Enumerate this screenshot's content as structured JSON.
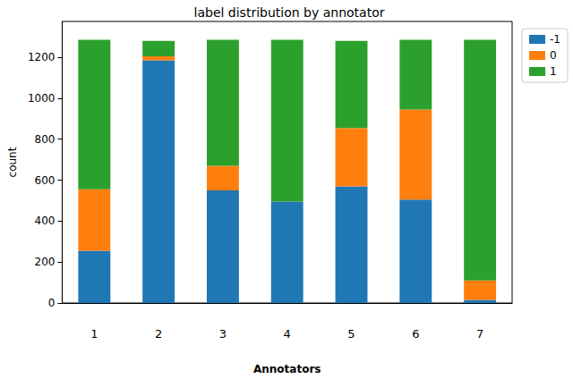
{
  "chart_data": {
    "type": "bar",
    "title": "label distribution by annotator",
    "x_label": "Annotators",
    "y_label": "count",
    "categories": [
      "1",
      "2",
      "3",
      "4",
      "5",
      "6",
      "7"
    ],
    "series": [
      {
        "name": "-1",
        "color": "#1f77b4",
        "values": [
          255,
          1185,
          550,
          495,
          570,
          505,
          15
        ]
      },
      {
        "name": "0",
        "color": "#ff7f0e",
        "values": [
          300,
          20,
          120,
          0,
          285,
          440,
          95
        ]
      },
      {
        "name": "1",
        "color": "#2ca02c",
        "values": [
          730,
          75,
          615,
          790,
          425,
          340,
          1175
        ]
      }
    ],
    "ylim": [
      0,
      1375
    ],
    "yticks": [
      0,
      200,
      400,
      600,
      800,
      1000,
      1200
    ],
    "stacked": true,
    "grid": false,
    "legend": "right"
  }
}
